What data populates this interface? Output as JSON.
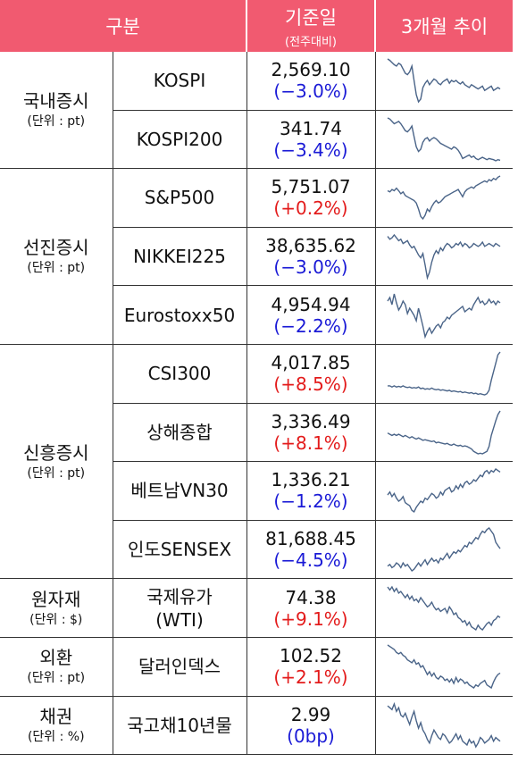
{
  "header": {
    "col1": "구분",
    "col2_title": "기준일",
    "col2_sub": "(전주대비)",
    "col3": "3개월 추이"
  },
  "groups": [
    {
      "name": "국내증시",
      "unit": "(단위 : pt)"
    },
    {
      "name": "선진증시",
      "unit": "(단위 : pt)"
    },
    {
      "name": "신흥증시",
      "unit": "(단위 : pt)"
    },
    {
      "name": "원자재",
      "unit": "(단위 : $)"
    },
    {
      "name": "외환",
      "unit": "(단위 : pt)"
    },
    {
      "name": "채권",
      "unit": "(단위 : %)"
    }
  ],
  "rows": [
    {
      "name": "KOSPI",
      "value": "2,569.10",
      "change": "(−3.0%)",
      "dir": "neg"
    },
    {
      "name": "KOSPI200",
      "value": "341.74",
      "change": "(−3.4%)",
      "dir": "neg"
    },
    {
      "name": "S&P500",
      "value": "5,751.07",
      "change": "(+0.2%)",
      "dir": "pos"
    },
    {
      "name": "NIKKEI225",
      "value": "38,635.62",
      "change": "(−3.0%)",
      "dir": "neg"
    },
    {
      "name": "Eurostoxx50",
      "value": "4,954.94",
      "change": "(−2.2%)",
      "dir": "neg"
    },
    {
      "name": "CSI300",
      "value": "4,017.85",
      "change": "(+8.5%)",
      "dir": "pos"
    },
    {
      "name": "상해종합",
      "value": "3,336.49",
      "change": "(+8.1%)",
      "dir": "pos"
    },
    {
      "name": "베트남VN30",
      "value": "1,336.21",
      "change": "(−1.2%)",
      "dir": "neg"
    },
    {
      "name": "인도SENSEX",
      "value": "81,688.45",
      "change": "(−4.5%)",
      "dir": "neg"
    },
    {
      "name": "국제유가",
      "name2": "(WTI)",
      "value": "74.38",
      "change": "(+9.1%)",
      "dir": "pos"
    },
    {
      "name": "달러인덱스",
      "value": "102.52",
      "change": "(+2.1%)",
      "dir": "pos"
    },
    {
      "name": "국고채10년물",
      "value": "2.99",
      "change": "(0bp)",
      "dir": "neg"
    }
  ],
  "sparklines": [
    [
      80,
      78,
      75,
      72,
      70,
      74,
      72,
      66,
      60,
      58,
      62,
      70,
      50,
      30,
      20,
      24,
      40,
      46,
      50,
      44,
      48,
      52,
      50,
      46,
      44,
      48,
      50,
      52,
      46,
      50,
      48,
      50,
      47,
      45,
      48,
      44,
      42,
      40,
      44,
      42,
      40,
      38,
      40,
      42,
      36,
      38,
      40,
      42,
      36,
      38,
      40,
      38
    ],
    [
      80,
      78,
      74,
      70,
      72,
      74,
      70,
      64,
      58,
      56,
      60,
      66,
      48,
      30,
      22,
      26,
      38,
      44,
      46,
      40,
      44,
      46,
      44,
      40,
      36,
      34,
      32,
      30,
      28,
      26,
      30,
      28,
      24,
      18,
      10,
      12,
      14,
      16,
      12,
      14,
      10,
      8,
      10,
      12,
      10,
      8,
      10,
      9,
      8,
      6,
      8,
      7
    ],
    [
      60,
      58,
      62,
      60,
      64,
      60,
      55,
      58,
      52,
      50,
      48,
      46,
      44,
      40,
      30,
      18,
      14,
      20,
      30,
      26,
      34,
      40,
      44,
      40,
      42,
      46,
      50,
      52,
      54,
      56,
      58,
      60,
      62,
      56,
      50,
      58,
      62,
      64,
      66,
      64,
      68,
      70,
      72,
      74,
      76,
      74,
      78,
      76,
      80,
      78,
      82,
      84
    ],
    [
      70,
      66,
      68,
      72,
      68,
      64,
      66,
      60,
      62,
      64,
      58,
      54,
      56,
      50,
      44,
      40,
      46,
      30,
      12,
      20,
      34,
      44,
      50,
      46,
      54,
      50,
      56,
      60,
      58,
      54,
      56,
      60,
      58,
      62,
      56,
      60,
      58,
      54,
      56,
      60,
      58,
      56,
      58,
      62,
      56,
      58,
      60,
      58,
      56,
      60,
      58,
      56
    ],
    [
      62,
      66,
      58,
      70,
      60,
      52,
      56,
      62,
      58,
      48,
      54,
      50,
      46,
      40,
      54,
      44,
      34,
      22,
      28,
      32,
      26,
      30,
      34,
      36,
      32,
      38,
      40,
      44,
      42,
      46,
      48,
      50,
      52,
      54,
      56,
      50,
      52,
      54,
      52,
      58,
      62,
      66,
      60,
      62,
      58,
      60,
      64,
      60,
      62,
      58,
      62,
      60
    ],
    [
      30,
      30,
      28,
      30,
      28,
      29,
      28,
      30,
      28,
      27,
      28,
      26,
      27,
      26,
      28,
      25,
      26,
      24,
      25,
      24,
      26,
      24,
      23,
      24,
      22,
      23,
      22,
      21,
      22,
      20,
      21,
      20,
      19,
      20,
      18,
      19,
      18,
      17,
      18,
      16,
      17,
      15,
      16,
      15,
      14,
      16,
      22,
      40,
      55,
      70,
      85,
      90
    ],
    [
      44,
      42,
      40,
      42,
      40,
      42,
      40,
      38,
      40,
      38,
      36,
      38,
      36,
      34,
      36,
      34,
      32,
      33,
      32,
      31,
      30,
      31,
      28,
      29,
      28,
      27,
      26,
      27,
      25,
      24,
      26,
      24,
      23,
      24,
      22,
      23,
      22,
      20,
      18,
      14,
      12,
      10,
      11,
      10,
      12,
      14,
      22,
      40,
      52,
      64,
      74,
      80
    ],
    [
      40,
      44,
      38,
      42,
      36,
      32,
      34,
      38,
      30,
      28,
      26,
      20,
      18,
      24,
      28,
      32,
      30,
      36,
      34,
      38,
      42,
      40,
      36,
      38,
      44,
      40,
      46,
      48,
      50,
      44,
      46,
      52,
      48,
      54,
      50,
      56,
      58,
      54,
      56,
      60,
      58,
      62,
      66,
      64,
      70,
      72,
      68,
      72,
      70,
      74,
      72,
      70
    ],
    [
      30,
      32,
      28,
      30,
      34,
      32,
      28,
      34,
      30,
      32,
      28,
      24,
      26,
      30,
      34,
      30,
      34,
      38,
      32,
      36,
      40,
      36,
      38,
      34,
      40,
      38,
      42,
      46,
      40,
      44,
      48,
      46,
      50,
      48,
      52,
      56,
      54,
      60,
      58,
      62,
      66,
      64,
      70,
      74,
      72,
      76,
      78,
      74,
      70,
      60,
      56,
      52
    ],
    [
      70,
      66,
      70,
      64,
      68,
      62,
      64,
      60,
      56,
      60,
      54,
      58,
      52,
      54,
      50,
      56,
      52,
      48,
      44,
      46,
      50,
      44,
      40,
      42,
      38,
      40,
      42,
      36,
      44,
      40,
      34,
      36,
      30,
      28,
      24,
      26,
      20,
      24,
      18,
      16,
      14,
      20,
      16,
      14,
      18,
      22,
      24,
      20,
      26,
      28,
      32,
      30
    ],
    [
      70,
      68,
      66,
      64,
      60,
      58,
      60,
      56,
      54,
      50,
      48,
      46,
      50,
      44,
      46,
      40,
      42,
      36,
      30,
      34,
      28,
      32,
      26,
      24,
      28,
      26,
      22,
      24,
      20,
      24,
      18,
      26,
      20,
      24,
      22,
      18,
      20,
      16,
      14,
      12,
      16,
      14,
      18,
      20,
      22,
      16,
      14,
      12,
      20,
      26,
      30,
      32
    ],
    [
      60,
      58,
      56,
      62,
      54,
      58,
      50,
      48,
      52,
      46,
      40,
      48,
      54,
      44,
      36,
      42,
      34,
      30,
      24,
      20,
      28,
      34,
      30,
      26,
      24,
      30,
      28,
      24,
      20,
      22,
      26,
      30,
      24,
      28,
      22,
      20,
      18,
      24,
      20,
      22,
      16,
      20,
      26,
      24,
      20,
      22,
      24,
      28,
      22,
      26,
      24,
      22
    ]
  ]
}
